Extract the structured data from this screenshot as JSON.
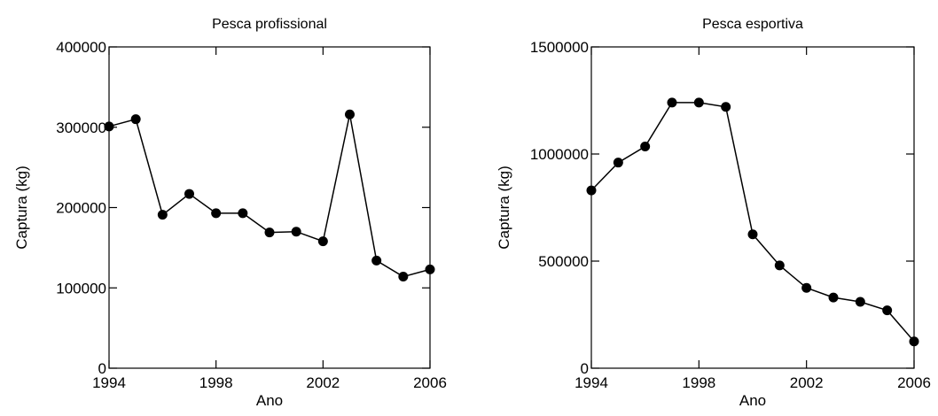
{
  "chart_data": [
    {
      "type": "line",
      "title": "Pesca profissional",
      "xlabel": "Ano",
      "ylabel": "Captura (kg)",
      "xlim": [
        1994,
        2006
      ],
      "ylim": [
        0,
        400000
      ],
      "xticks": [
        1994,
        1998,
        2002,
        2006
      ],
      "yticks": [
        0,
        100000,
        200000,
        300000,
        400000
      ],
      "series": [
        {
          "x": [
            1994,
            1995,
            1996,
            1997,
            1998,
            1999,
            2000,
            2001,
            2002,
            2003,
            2004,
            2005,
            2006
          ],
          "values": [
            301000,
            310000,
            191000,
            217000,
            193000,
            193000,
            169000,
            170000,
            158000,
            316000,
            134000,
            114000,
            123000
          ]
        }
      ],
      "grid": false
    },
    {
      "type": "line",
      "title": "Pesca esportiva",
      "xlabel": "Ano",
      "ylabel": "Captura (kg)",
      "xlim": [
        1994,
        2006
      ],
      "ylim": [
        0,
        1500000
      ],
      "xticks": [
        1994,
        1998,
        2002,
        2006
      ],
      "yticks": [
        0,
        500000,
        1000000,
        1500000
      ],
      "series": [
        {
          "x": [
            1994,
            1995,
            1996,
            1997,
            1998,
            1999,
            2000,
            2001,
            2002,
            2003,
            2004,
            2005,
            2006
          ],
          "values": [
            830000,
            960000,
            1035000,
            1240000,
            1240000,
            1220000,
            625000,
            480000,
            375000,
            330000,
            310000,
            270000,
            125000
          ]
        }
      ],
      "grid": false
    }
  ]
}
